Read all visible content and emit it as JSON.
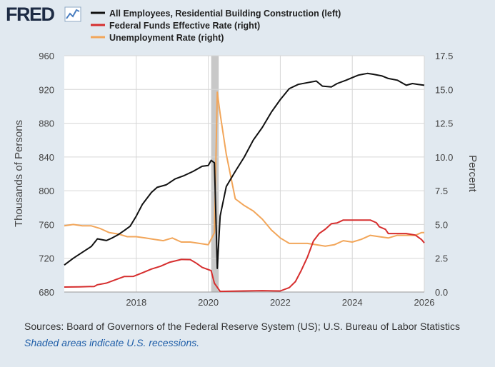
{
  "brand": {
    "logo_text": "FRED",
    "logo_icon": "line-chart-icon"
  },
  "footer": {
    "sources": "Sources: Board of Governors of the Federal Reserve System (US); U.S. Bureau of Labor Statistics",
    "recession_note": "Shaded areas indicate U.S. recessions."
  },
  "chart_data": {
    "type": "line",
    "title": "",
    "left_axis": {
      "label": "Thousands of Persons",
      "ylim": [
        680,
        960
      ],
      "ticks": [
        680,
        720,
        760,
        800,
        840,
        880,
        920,
        960
      ]
    },
    "right_axis": {
      "label": "Percent",
      "ylim": [
        0,
        17.5
      ],
      "ticks": [
        "0.0",
        "2.5",
        "5.0",
        "7.5",
        "10.0",
        "12.5",
        "15.0",
        "17.5"
      ]
    },
    "x_axis": {
      "xlim": [
        2016.0,
        2026.0
      ],
      "ticks": [
        "2018",
        "2020",
        "2022",
        "2024",
        "2026"
      ]
    },
    "recessions": [
      [
        2020.08,
        2020.29
      ]
    ],
    "grid": true,
    "legend_position": "top-left",
    "series": [
      {
        "name": "All Employees, Residential Building Construction (left)",
        "axis": "left",
        "color": "#111111",
        "x": [
          2016.0,
          2016.25,
          2016.5,
          2016.75,
          2016.92,
          2017.17,
          2017.33,
          2017.5,
          2017.67,
          2017.83,
          2018.0,
          2018.17,
          2018.42,
          2018.58,
          2018.83,
          2019.08,
          2019.33,
          2019.58,
          2019.83,
          2020.0,
          2020.08,
          2020.17,
          2020.25,
          2020.33,
          2020.5,
          2020.75,
          2021.0,
          2021.25,
          2021.5,
          2021.75,
          2022.0,
          2022.25,
          2022.5,
          2022.75,
          2023.0,
          2023.17,
          2023.42,
          2023.58,
          2023.83,
          2024.0,
          2024.17,
          2024.42,
          2024.58,
          2024.83,
          2025.0,
          2025.25,
          2025.5,
          2025.67,
          2025.83,
          2026.0
        ],
        "values": [
          712,
          720,
          727,
          734,
          743,
          741,
          744,
          748,
          753,
          758,
          770,
          784,
          798,
          804,
          807,
          814,
          818,
          823,
          829,
          830,
          836,
          833,
          708,
          770,
          805,
          823,
          840,
          860,
          875,
          893,
          908,
          921,
          926,
          928,
          930,
          924,
          923,
          927,
          931,
          934,
          937,
          939,
          938,
          936,
          933,
          931,
          925,
          927,
          926,
          925
        ]
      },
      {
        "name": "Federal Funds Effective Rate (right)",
        "axis": "right",
        "color": "#d62e2e",
        "x": [
          2016.0,
          2016.42,
          2016.83,
          2016.92,
          2017.17,
          2017.42,
          2017.67,
          2017.92,
          2018.17,
          2018.42,
          2018.67,
          2018.92,
          2019.25,
          2019.5,
          2019.67,
          2019.83,
          2020.08,
          2020.17,
          2020.33,
          2021.0,
          2021.5,
          2022.0,
          2022.25,
          2022.42,
          2022.58,
          2022.75,
          2022.92,
          2023.08,
          2023.25,
          2023.42,
          2023.58,
          2023.75,
          2024.0,
          2024.5,
          2024.67,
          2024.75,
          2024.92,
          2025.0,
          2025.5,
          2025.75,
          2025.92,
          2026.0
        ],
        "values": [
          0.37,
          0.38,
          0.41,
          0.54,
          0.66,
          0.91,
          1.15,
          1.16,
          1.42,
          1.7,
          1.91,
          2.2,
          2.41,
          2.4,
          2.13,
          1.83,
          1.58,
          0.65,
          0.05,
          0.08,
          0.1,
          0.08,
          0.33,
          0.77,
          1.58,
          2.56,
          3.78,
          4.33,
          4.65,
          5.06,
          5.12,
          5.33,
          5.33,
          5.33,
          5.13,
          4.83,
          4.64,
          4.33,
          4.33,
          4.22,
          3.89,
          3.64
        ]
      },
      {
        "name": "Unemployment Rate (right)",
        "axis": "right",
        "color": "#f2a65a",
        "x": [
          2016.0,
          2016.25,
          2016.5,
          2016.75,
          2017.0,
          2017.25,
          2017.5,
          2017.75,
          2018.0,
          2018.25,
          2018.5,
          2018.75,
          2019.0,
          2019.25,
          2019.5,
          2019.75,
          2020.0,
          2020.17,
          2020.25,
          2020.33,
          2020.5,
          2020.75,
          2021.0,
          2021.25,
          2021.5,
          2021.75,
          2022.0,
          2022.25,
          2022.5,
          2022.75,
          2023.0,
          2023.25,
          2023.5,
          2023.75,
          2024.0,
          2024.25,
          2024.5,
          2024.75,
          2025.0,
          2025.25,
          2025.5,
          2025.75,
          2025.92,
          2026.0
        ],
        "values": [
          4.9,
          5.0,
          4.9,
          4.9,
          4.7,
          4.4,
          4.3,
          4.1,
          4.1,
          4.0,
          3.9,
          3.8,
          4.0,
          3.7,
          3.7,
          3.6,
          3.5,
          4.4,
          14.8,
          13.2,
          10.2,
          6.9,
          6.4,
          6.0,
          5.4,
          4.6,
          4.0,
          3.6,
          3.6,
          3.6,
          3.5,
          3.4,
          3.5,
          3.8,
          3.7,
          3.9,
          4.2,
          4.1,
          4.0,
          4.2,
          4.2,
          4.2,
          4.4,
          4.4
        ]
      }
    ]
  }
}
